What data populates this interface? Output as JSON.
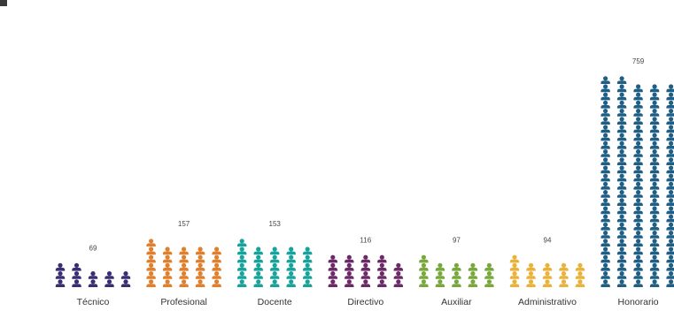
{
  "chart_data": {
    "type": "bar",
    "categories": [
      "Técnico",
      "Profesional",
      "Docente",
      "Directivo",
      "Auxiliar",
      "Administrativo",
      "Honorario"
    ],
    "values": [
      69,
      157,
      153,
      116,
      97,
      94,
      759
    ],
    "colors": [
      "#3b2d73",
      "#e07f2c",
      "#17a39c",
      "#6b2a67",
      "#78a73a",
      "#e9b23a",
      "#1f5f86"
    ],
    "title": "",
    "xlabel": "",
    "ylabel": "",
    "icon": "person-icon",
    "grid": false,
    "legend": "none"
  }
}
